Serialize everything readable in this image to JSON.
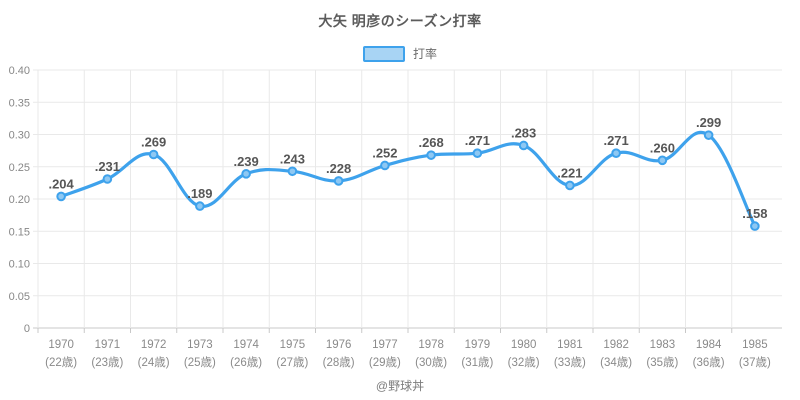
{
  "footer": "@野球丼",
  "colors": {
    "line": "#3ea2ec",
    "marker_fill": "#8ec8f3",
    "legend_fill": "#a8d4f4",
    "grid": "#e9e9e9",
    "axis": "#c8c8c8",
    "tick_text": "#878787",
    "data_label": "#565656"
  },
  "chart_data": {
    "type": "line",
    "title": "大矢 明彦のシーズン打率",
    "legend": "打率",
    "legend_position": "top",
    "grid": true,
    "smoothing": true,
    "ylim": [
      0,
      0.4
    ],
    "yticks": [
      "0.40",
      "0.35",
      "0.30",
      "0.25",
      "0.20",
      "0.15",
      "0.10",
      "0.05",
      "0"
    ],
    "categories": [
      {
        "year": "1970",
        "age": "(22歳)"
      },
      {
        "year": "1971",
        "age": "(23歳)"
      },
      {
        "year": "1972",
        "age": "(24歳)"
      },
      {
        "year": "1973",
        "age": "(25歳)"
      },
      {
        "year": "1974",
        "age": "(26歳)"
      },
      {
        "year": "1975",
        "age": "(27歳)"
      },
      {
        "year": "1976",
        "age": "(28歳)"
      },
      {
        "year": "1977",
        "age": "(29歳)"
      },
      {
        "year": "1978",
        "age": "(30歳)"
      },
      {
        "year": "1979",
        "age": "(31歳)"
      },
      {
        "year": "1980",
        "age": "(32歳)"
      },
      {
        "year": "1981",
        "age": "(33歳)"
      },
      {
        "year": "1982",
        "age": "(34歳)"
      },
      {
        "year": "1983",
        "age": "(35歳)"
      },
      {
        "year": "1984",
        "age": "(36歳)"
      },
      {
        "year": "1985",
        "age": "(37歳)"
      }
    ],
    "values": [
      0.204,
      0.231,
      0.269,
      0.189,
      0.239,
      0.243,
      0.228,
      0.252,
      0.268,
      0.271,
      0.283,
      0.221,
      0.271,
      0.26,
      0.299,
      0.158
    ],
    "point_labels": [
      ".204",
      ".231",
      ".269",
      ".189",
      ".239",
      ".243",
      ".228",
      ".252",
      ".268",
      ".271",
      ".283",
      ".221",
      ".271",
      ".260",
      ".299",
      ".158"
    ]
  }
}
